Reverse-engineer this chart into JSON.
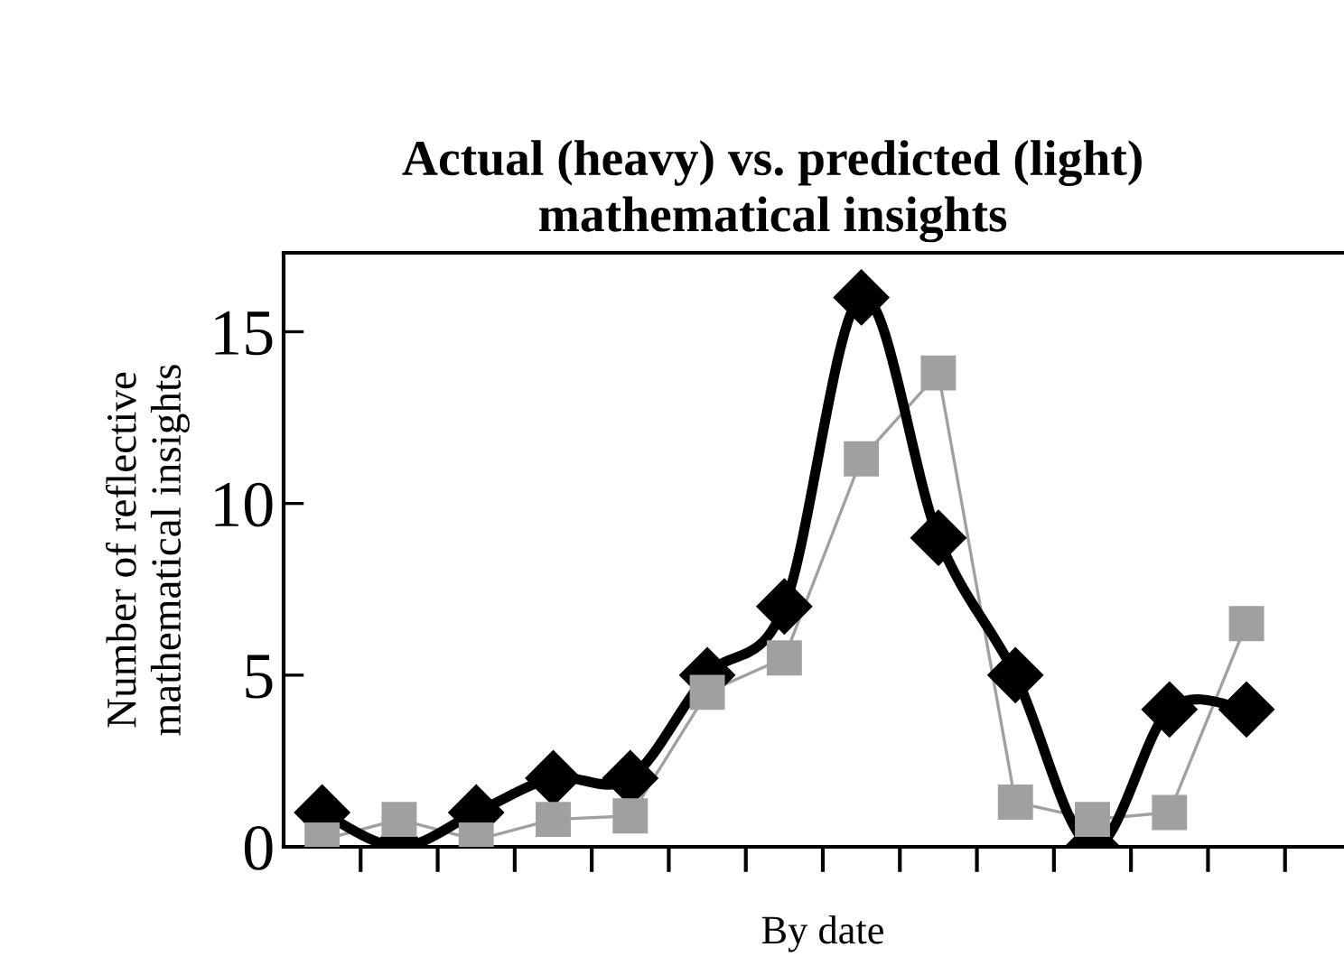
{
  "chart_data": {
    "type": "line",
    "title": "Actual (heavy) vs. predicted (light)\nmathematical insights",
    "xlabel": "By date",
    "ylabel": "Number of reflective\nmathematical insights",
    "categories": [
      null,
      null,
      null,
      null,
      null,
      null,
      null,
      null,
      null,
      null,
      null,
      null,
      null,
      null
    ],
    "series": [
      {
        "color": "#000000",
        "marker": "diamond",
        "values": [
          1,
          0,
          1,
          2,
          2,
          5,
          7,
          16,
          9,
          5,
          0,
          4,
          4,
          null
        ]
      },
      {
        "color": "#a0a0a0",
        "marker": "square",
        "values": [
          0.2,
          0.8,
          0.2,
          0.8,
          0.9,
          4.5,
          5.5,
          11.3,
          13.8,
          1.3,
          0.8,
          1.0,
          6.5,
          null
        ]
      }
    ],
    "ylim": [
      0,
      17.3
    ],
    "yticks": [
      0,
      5,
      10,
      15
    ],
    "grid": false,
    "legend": false
  }
}
